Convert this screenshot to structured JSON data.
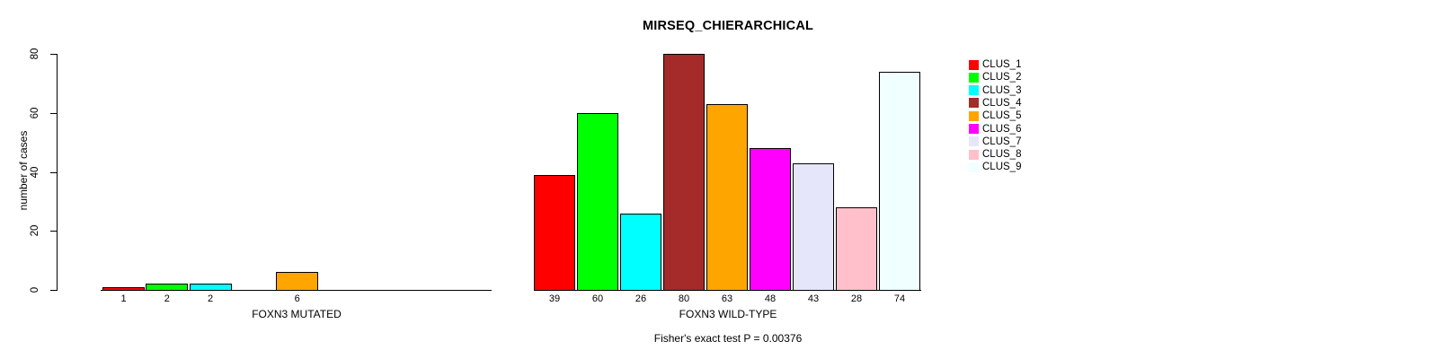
{
  "chart_data": {
    "type": "bar",
    "title": "MIRSEQ_CHIERARCHICAL",
    "ylabel": "number of cases",
    "ylim": [
      0,
      80
    ],
    "yticks": [
      0,
      20,
      40,
      60,
      80
    ],
    "grid": false,
    "legend_position": "right",
    "legend": [
      {
        "label": "CLUS_1",
        "color": "#ff0000"
      },
      {
        "label": "CLUS_2",
        "color": "#00ff00"
      },
      {
        "label": "CLUS_3",
        "color": "#00ffff"
      },
      {
        "label": "CLUS_4",
        "color": "#a52a2a"
      },
      {
        "label": "CLUS_5",
        "color": "#ffa500"
      },
      {
        "label": "CLUS_6",
        "color": "#ff00ff"
      },
      {
        "label": "CLUS_7",
        "color": "#e6e6fa"
      },
      {
        "label": "CLUS_8",
        "color": "#ffc0cb"
      },
      {
        "label": "CLUS_9",
        "color": "#f0ffff"
      }
    ],
    "groups": [
      {
        "label": "FOXN3 MUTATED",
        "values": [
          1,
          2,
          2,
          0,
          6,
          0,
          0,
          0,
          0
        ],
        "bar_labels": [
          "1",
          "2",
          "2",
          "",
          "6",
          "",
          "",
          "",
          ""
        ]
      },
      {
        "label": "FOXN3 WILD-TYPE",
        "values": [
          39,
          60,
          26,
          80,
          63,
          48,
          43,
          28,
          74
        ],
        "bar_labels": [
          "39",
          "60",
          "26",
          "80",
          "63",
          "48",
          "43",
          "28",
          "74"
        ]
      }
    ],
    "annotation": "Fisher's exact test P = 0.00376"
  }
}
